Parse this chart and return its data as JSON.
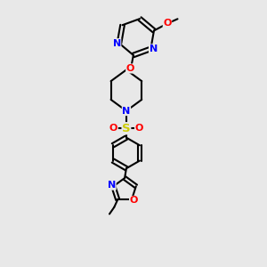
{
  "background_color": "#e8e8e8",
  "atom_colors": {
    "C": "#000000",
    "N": "#0000ff",
    "O": "#ff0000",
    "S": "#cccc00"
  },
  "bond_color": "#000000",
  "bond_width": 1.5,
  "figsize": [
    3.0,
    3.0
  ],
  "dpi": 100,
  "xlim": [
    0,
    10
  ],
  "ylim": [
    0,
    13
  ]
}
